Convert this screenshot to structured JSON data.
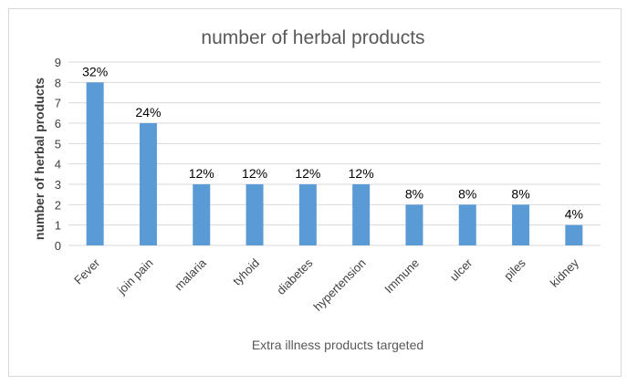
{
  "chart_data": {
    "type": "bar",
    "title": "number of herbal products",
    "xlabel": "Extra illness products targeted",
    "ylabel": "number of herbal products",
    "categories": [
      "Fever",
      "join pain",
      "malaria",
      "tyhoid",
      "diabetes",
      "hypertension",
      "Immune",
      "ulcer",
      "piles",
      "kidney"
    ],
    "values": [
      8,
      6,
      3,
      3,
      3,
      3,
      2,
      2,
      2,
      1
    ],
    "data_labels": [
      "32%",
      "24%",
      "12%",
      "12%",
      "12%",
      "12%",
      "8%",
      "8%",
      "8%",
      "4%"
    ],
    "ylim": [
      0,
      9
    ],
    "yticks": [
      0,
      1,
      2,
      3,
      4,
      5,
      6,
      7,
      8,
      9
    ],
    "grid": true,
    "bar_color": "#5b9bd5",
    "legend": false
  }
}
